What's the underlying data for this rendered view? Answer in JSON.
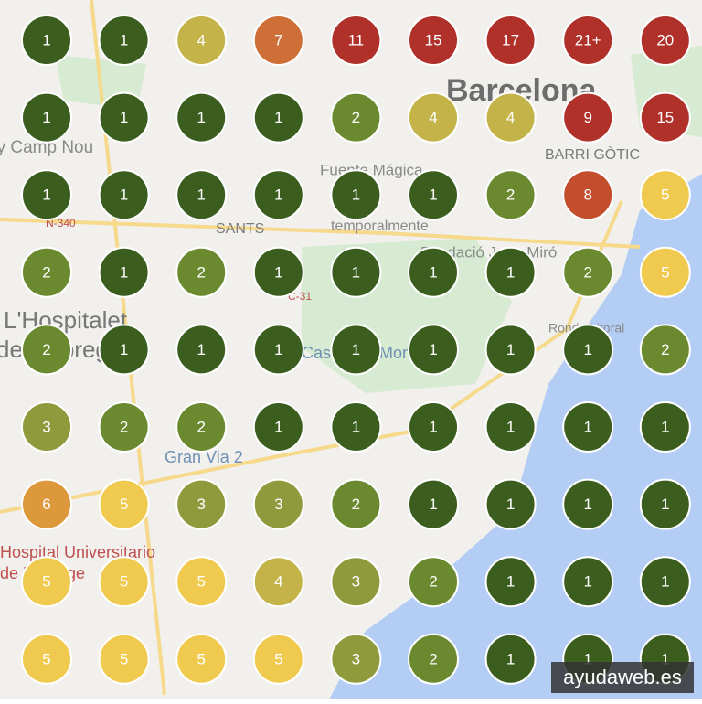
{
  "map_labels": [
    "Barcelona",
    "BARRI GÒTIC",
    "SANTS",
    "Spotify Camp Nou",
    "L'Hospitalet",
    "de Llobregat",
    "Fuente Mágica",
    "Fundació Joan Miró",
    "Gran Via 2",
    "Hospital Universitario",
    "de Bellvitge",
    "Ronda Litoral",
    "N-340",
    "C-31",
    "Castell de Montjuïc",
    "temporalmente"
  ],
  "grid": {
    "rows": [
      [
        "1",
        "1",
        "4",
        "7",
        "11",
        "15",
        "17",
        "21+",
        "20"
      ],
      [
        "1",
        "1",
        "1",
        "1",
        "2",
        "4",
        "4",
        "9",
        "15"
      ],
      [
        "1",
        "1",
        "1",
        "1",
        "1",
        "1",
        "2",
        "8",
        "5"
      ],
      [
        "2",
        "1",
        "2",
        "1",
        "1",
        "1",
        "1",
        "2",
        "5"
      ],
      [
        "2",
        "1",
        "1",
        "1",
        "1",
        "1",
        "1",
        "1",
        "2"
      ],
      [
        "3",
        "2",
        "2",
        "1",
        "1",
        "1",
        "1",
        "1",
        "1"
      ],
      [
        "6",
        "5",
        "3",
        "3",
        "2",
        "1",
        "1",
        "1",
        "1"
      ],
      [
        "5",
        "5",
        "5",
        "4",
        "3",
        "2",
        "1",
        "1",
        "1"
      ],
      [
        "5",
        "5",
        "5",
        "5",
        "3",
        "2",
        "1",
        "1",
        "1"
      ]
    ]
  },
  "watermark": "ayudaweb.es"
}
